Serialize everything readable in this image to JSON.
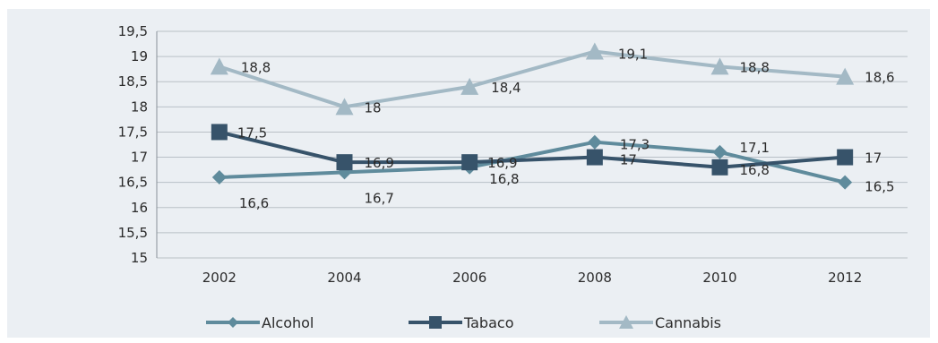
{
  "chart_data": {
    "type": "line",
    "title": "",
    "xlabel": "",
    "ylabel": "",
    "x": [
      "2002",
      "2004",
      "2006",
      "2008",
      "2010",
      "2012"
    ],
    "ylim": [
      15,
      19.5
    ],
    "yticks": [
      "15",
      "15,5",
      "16",
      "16,5",
      "17",
      "17,5",
      "18",
      "18,5",
      "19",
      "19,5"
    ],
    "grid": "horizontal",
    "legend_position": "bottom",
    "series": [
      {
        "name": "Alcohol",
        "marker": "diamond",
        "color": "#5f8b9c",
        "values": [
          16.6,
          16.7,
          16.8,
          17.3,
          17.1,
          16.5
        ],
        "labels": [
          "16,6",
          "16,7",
          "16,8",
          "17,3",
          "17,1",
          "16,5"
        ]
      },
      {
        "name": "Tabaco",
        "marker": "square",
        "color": "#37536a",
        "values": [
          17.5,
          16.9,
          16.9,
          17.0,
          16.8,
          17.0
        ],
        "labels": [
          "17,5",
          "16,9",
          "16,9",
          "17",
          "16,8",
          "17"
        ]
      },
      {
        "name": "Cannabis",
        "marker": "triangle",
        "color": "#a3b9c5",
        "values": [
          18.8,
          18.0,
          18.4,
          19.1,
          18.8,
          18.6
        ],
        "labels": [
          "18,8",
          "18",
          "18,4",
          "19,1",
          "18,8",
          "18,6"
        ]
      }
    ]
  }
}
